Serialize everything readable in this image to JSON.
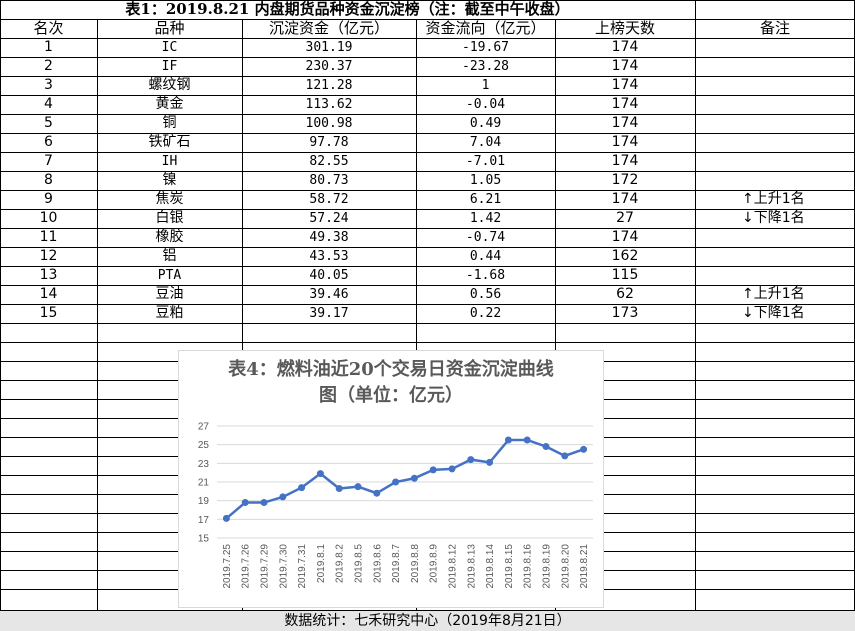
{
  "title": "表1：2019.8.21 内盘期货品种资金沉淀榜（注：截至中午收盘）",
  "headers": [
    "名次",
    "品种",
    "沉淀资金（亿元）",
    "资金流向（亿元）",
    "上榜天数",
    "备注"
  ],
  "rows": [
    {
      "rank": "1",
      "name": "IC",
      "fund": "301.19",
      "flow": "-19.67",
      "days": "174",
      "note": ""
    },
    {
      "rank": "2",
      "name": "IF",
      "fund": "230.37",
      "flow": "-23.28",
      "days": "174",
      "note": ""
    },
    {
      "rank": "3",
      "name": "螺纹钢",
      "fund": "121.28",
      "flow": "1",
      "days": "174",
      "note": ""
    },
    {
      "rank": "4",
      "name": "黄金",
      "fund": "113.62",
      "flow": "-0.04",
      "days": "174",
      "note": ""
    },
    {
      "rank": "5",
      "name": "铜",
      "fund": "100.98",
      "flow": "0.49",
      "days": "174",
      "note": ""
    },
    {
      "rank": "6",
      "name": "铁矿石",
      "fund": "97.78",
      "flow": "7.04",
      "days": "174",
      "note": ""
    },
    {
      "rank": "7",
      "name": "IH",
      "fund": "82.55",
      "flow": "-7.01",
      "days": "174",
      "note": ""
    },
    {
      "rank": "8",
      "name": "镍",
      "fund": "80.73",
      "flow": "1.05",
      "days": "172",
      "note": ""
    },
    {
      "rank": "9",
      "name": "焦炭",
      "fund": "58.72",
      "flow": "6.21",
      "days": "174",
      "note": "↑上升1名"
    },
    {
      "rank": "10",
      "name": "白银",
      "fund": "57.24",
      "flow": "1.42",
      "days": "27",
      "note": "↓下降1名"
    },
    {
      "rank": "11",
      "name": "橡胶",
      "fund": "49.38",
      "flow": "-0.74",
      "days": "174",
      "note": ""
    },
    {
      "rank": "12",
      "name": "铝",
      "fund": "43.53",
      "flow": "0.44",
      "days": "162",
      "note": ""
    },
    {
      "rank": "13",
      "name": "PTA",
      "fund": "40.05",
      "flow": "-1.68",
      "days": "115",
      "note": ""
    },
    {
      "rank": "14",
      "name": "豆油",
      "fund": "39.46",
      "flow": "0.56",
      "days": "62",
      "note": "↑上升1名"
    },
    {
      "rank": "15",
      "name": "豆粕",
      "fund": "39.17",
      "flow": "0.22",
      "days": "173",
      "note": "↓下降1名"
    }
  ],
  "footer": "数据统计：七禾研究中心（2019年8月21日）",
  "chart_data": {
    "type": "line",
    "title": "表4：燃料油近20个交易日资金沉淀曲线图（单位：亿元）",
    "title_lines": [
      "表4：燃料油近20个交易日资金沉淀曲线",
      "图（单位：亿元）"
    ],
    "x": [
      "2019.7.25",
      "2019.7.26",
      "2019.7.29",
      "2019.7.30",
      "2019.7.31",
      "2019.8.1",
      "2019.8.2",
      "2019.8.5",
      "2019.8.6",
      "2019.8.7",
      "2019.8.8",
      "2019.8.9",
      "2019.8.12",
      "2019.8.13",
      "2019.8.14",
      "2019.8.15",
      "2019.8.16",
      "2019.8.19",
      "2019.8.20",
      "2019.8.21"
    ],
    "values": [
      17.1,
      18.8,
      18.8,
      19.4,
      20.4,
      21.9,
      20.3,
      20.5,
      19.8,
      21.0,
      21.4,
      22.3,
      22.4,
      23.4,
      23.1,
      25.5,
      25.5,
      24.8,
      23.8,
      24.5
    ],
    "ylim": [
      15,
      27
    ],
    "yticks": [
      15,
      17,
      19,
      21,
      23,
      25,
      27
    ],
    "grid": true,
    "color": "#4472c4"
  }
}
